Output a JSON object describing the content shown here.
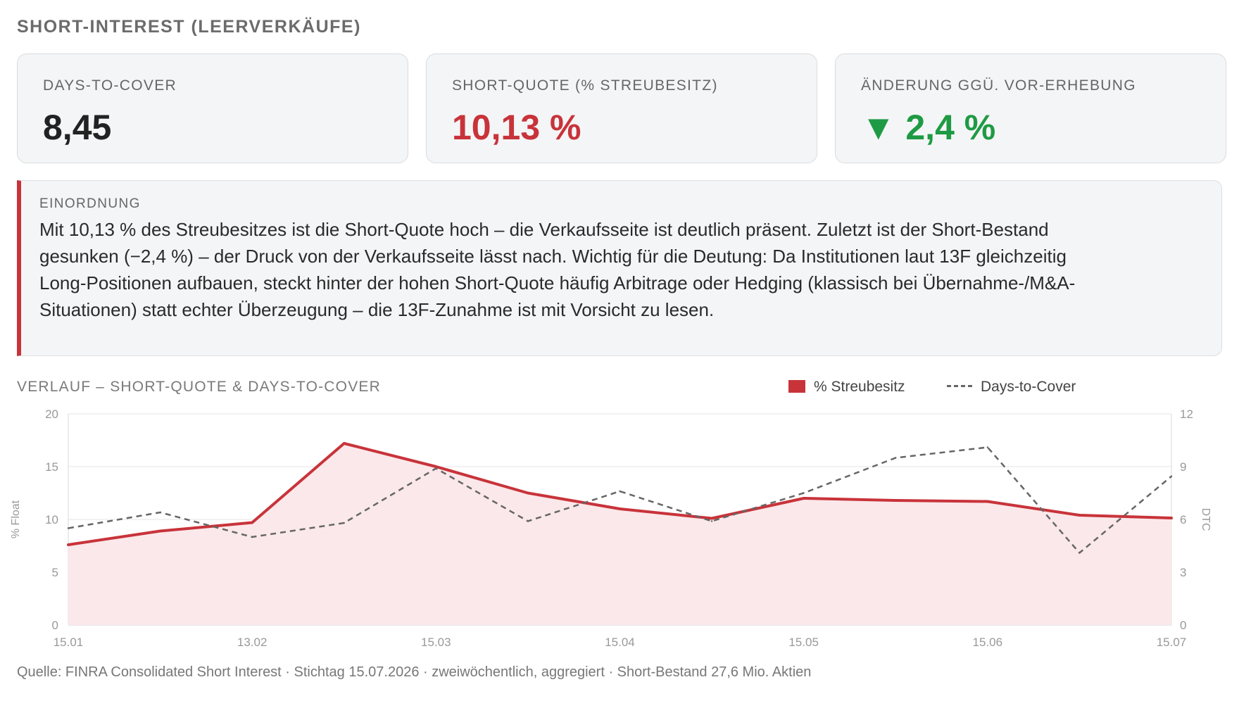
{
  "header": {
    "title": "SHORT-INTEREST (LEERVERKÄUFE)"
  },
  "cards": [
    {
      "label": "DAYS-TO-COVER",
      "value": "8,45"
    },
    {
      "label": "SHORT-QUOTE (% STREUBESITZ)",
      "value": "10,13 %"
    },
    {
      "label": "ÄNDERUNG GGÜ. VOR-ERHEBUNG",
      "value": "▼ 2,4 %"
    }
  ],
  "note": {
    "label": "EINORDNUNG",
    "text": "Mit 10,13 % des Streubesitzes ist die Short-Quote hoch – die Verkaufsseite ist deutlich präsent. Zuletzt ist der Short-Bestand gesunken (−2,4 %) – der Druck von der Verkaufsseite lässt nach. Wichtig für die Deutung: Da Institutionen laut 13F gleichzeitig Long-Positionen aufbauen, steckt hinter der hohen Short-Quote häufig Arbitrage oder Hedging (klassisch bei Übernahme-/M&A-Situationen) statt echter Überzeugung – die 13F-Zunahme ist mit Vorsicht zu lesen."
  },
  "colors": {
    "red": "#c8333a",
    "green": "#1f9a44",
    "dash": "#666666",
    "fill": "#fbe8ea"
  },
  "chart_data": {
    "type": "line",
    "title": "VERLAUF – SHORT-QUOTE & DAYS-TO-COVER",
    "x_tick_labels": [
      "15.01",
      "13.02",
      "15.03",
      "15.04",
      "15.05",
      "15.06",
      "15.07"
    ],
    "x": [
      "15.01",
      "31.01",
      "13.02",
      "28.02",
      "15.03",
      "31.03",
      "15.04",
      "30.04",
      "15.05",
      "31.05",
      "15.06",
      "30.06",
      "15.07"
    ],
    "series": [
      {
        "name": "% Streubesitz",
        "axis": "left",
        "style": "solid-area",
        "values": [
          7.6,
          8.9,
          9.7,
          17.2,
          15.0,
          12.5,
          11.0,
          10.1,
          12.0,
          11.8,
          11.7,
          10.4,
          10.13
        ]
      },
      {
        "name": "Days-to-Cover",
        "axis": "right",
        "style": "dashed",
        "values": [
          5.5,
          6.4,
          5.0,
          5.8,
          8.9,
          5.9,
          7.6,
          5.9,
          7.5,
          9.5,
          10.1,
          4.1,
          8.45
        ]
      }
    ],
    "ylabel_left": "% Float",
    "ylim_left": [
      0,
      20
    ],
    "yticks_left": [
      0,
      5,
      10,
      15,
      20
    ],
    "ylabel_right": "DTC",
    "ylim_right": [
      0,
      12
    ],
    "yticks_right": [
      0,
      3,
      6,
      9,
      12
    ],
    "grid": true,
    "legend_position": "top-right"
  },
  "footer": {
    "source": "Quelle: FINRA Consolidated Short Interest · Stichtag 15.07.2026 · zweiwöchentlich, aggregiert · Short-Bestand 27,6 Mio. Aktien"
  }
}
